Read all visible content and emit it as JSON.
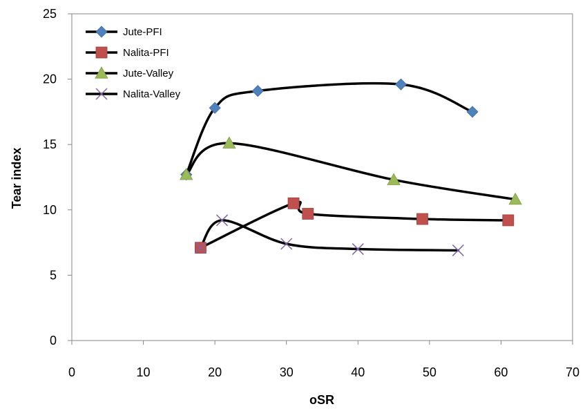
{
  "chart_data": {
    "type": "scatter",
    "title": "",
    "xlabel": "oSR",
    "ylabel": "Tear index",
    "xlim": [
      0,
      70
    ],
    "ylim": [
      0,
      25
    ],
    "xticks": [
      0,
      10,
      20,
      30,
      40,
      50,
      60,
      70
    ],
    "yticks": [
      0,
      5,
      10,
      15,
      20,
      25
    ],
    "grid": false,
    "legend_position": "top-left",
    "line_color": "#000000",
    "series": [
      {
        "name": "Jute-PFI",
        "marker": "diamond",
        "color": "#4F81BD",
        "x": [
          16,
          20,
          26,
          46,
          56
        ],
        "y": [
          12.7,
          17.8,
          19.1,
          19.6,
          17.5
        ]
      },
      {
        "name": "Nalita-PFI",
        "marker": "square",
        "color": "#C0504D",
        "x": [
          18,
          31,
          33,
          49,
          61
        ],
        "y": [
          7.1,
          10.5,
          9.7,
          9.3,
          9.2
        ]
      },
      {
        "name": "Jute-Valley",
        "marker": "triangle",
        "color": "#9BBB59",
        "x": [
          16,
          22,
          45,
          62
        ],
        "y": [
          12.7,
          15.1,
          12.3,
          10.8
        ]
      },
      {
        "name": "Nalita-Valley",
        "marker": "x",
        "color": "#8064A2",
        "x": [
          18,
          21,
          30,
          40,
          54
        ],
        "y": [
          7.1,
          9.2,
          7.4,
          7.0,
          6.9
        ]
      }
    ]
  }
}
